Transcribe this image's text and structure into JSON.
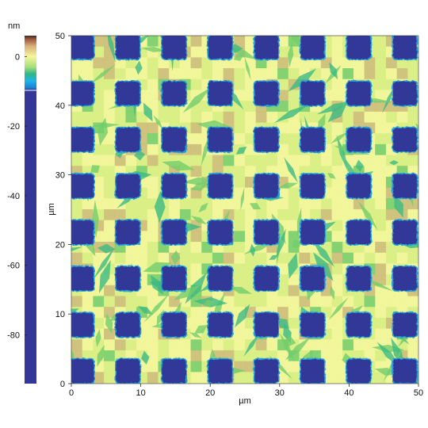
{
  "colorbar": {
    "unit": "nm",
    "ticks": [
      {
        "value": 0,
        "label": "0"
      },
      {
        "value": -20,
        "label": "-20"
      },
      {
        "value": -40,
        "label": "-40"
      },
      {
        "value": -60,
        "label": "-60"
      },
      {
        "value": -80,
        "label": "-80"
      }
    ],
    "range": [
      -94,
      6
    ],
    "colors": {
      "deep": "#333797",
      "cyan": "#1fb4e8",
      "teal": "#1ea9a0",
      "green": "#5ec86c",
      "yellow": "#f3f59a",
      "tan": "#c8a968",
      "brown": "#8c5a3c",
      "dark": "#3b2b2b"
    }
  },
  "image": {
    "xlabel": "µm",
    "ylabel": "µm",
    "xlim": [
      0,
      50
    ],
    "ylim": [
      0,
      50
    ],
    "x_ticks": [
      "0",
      "10",
      "20",
      "30",
      "40",
      "50"
    ],
    "y_ticks": [
      "0",
      "10",
      "20",
      "30",
      "40",
      "50"
    ],
    "grid_rows": 8,
    "grid_cols": 8,
    "pitch_um": 6.65,
    "square_size_um": 3.4,
    "first_center_um": 1.5,
    "colors": {
      "square": "#333797",
      "square_edge": "#23a0d8",
      "background_light": "#f4f79d",
      "background_mid": "#d9ee86",
      "background_green": "#73cd6c",
      "background_teal": "#3cba82",
      "patch_tan": "#cdbb7a"
    }
  }
}
